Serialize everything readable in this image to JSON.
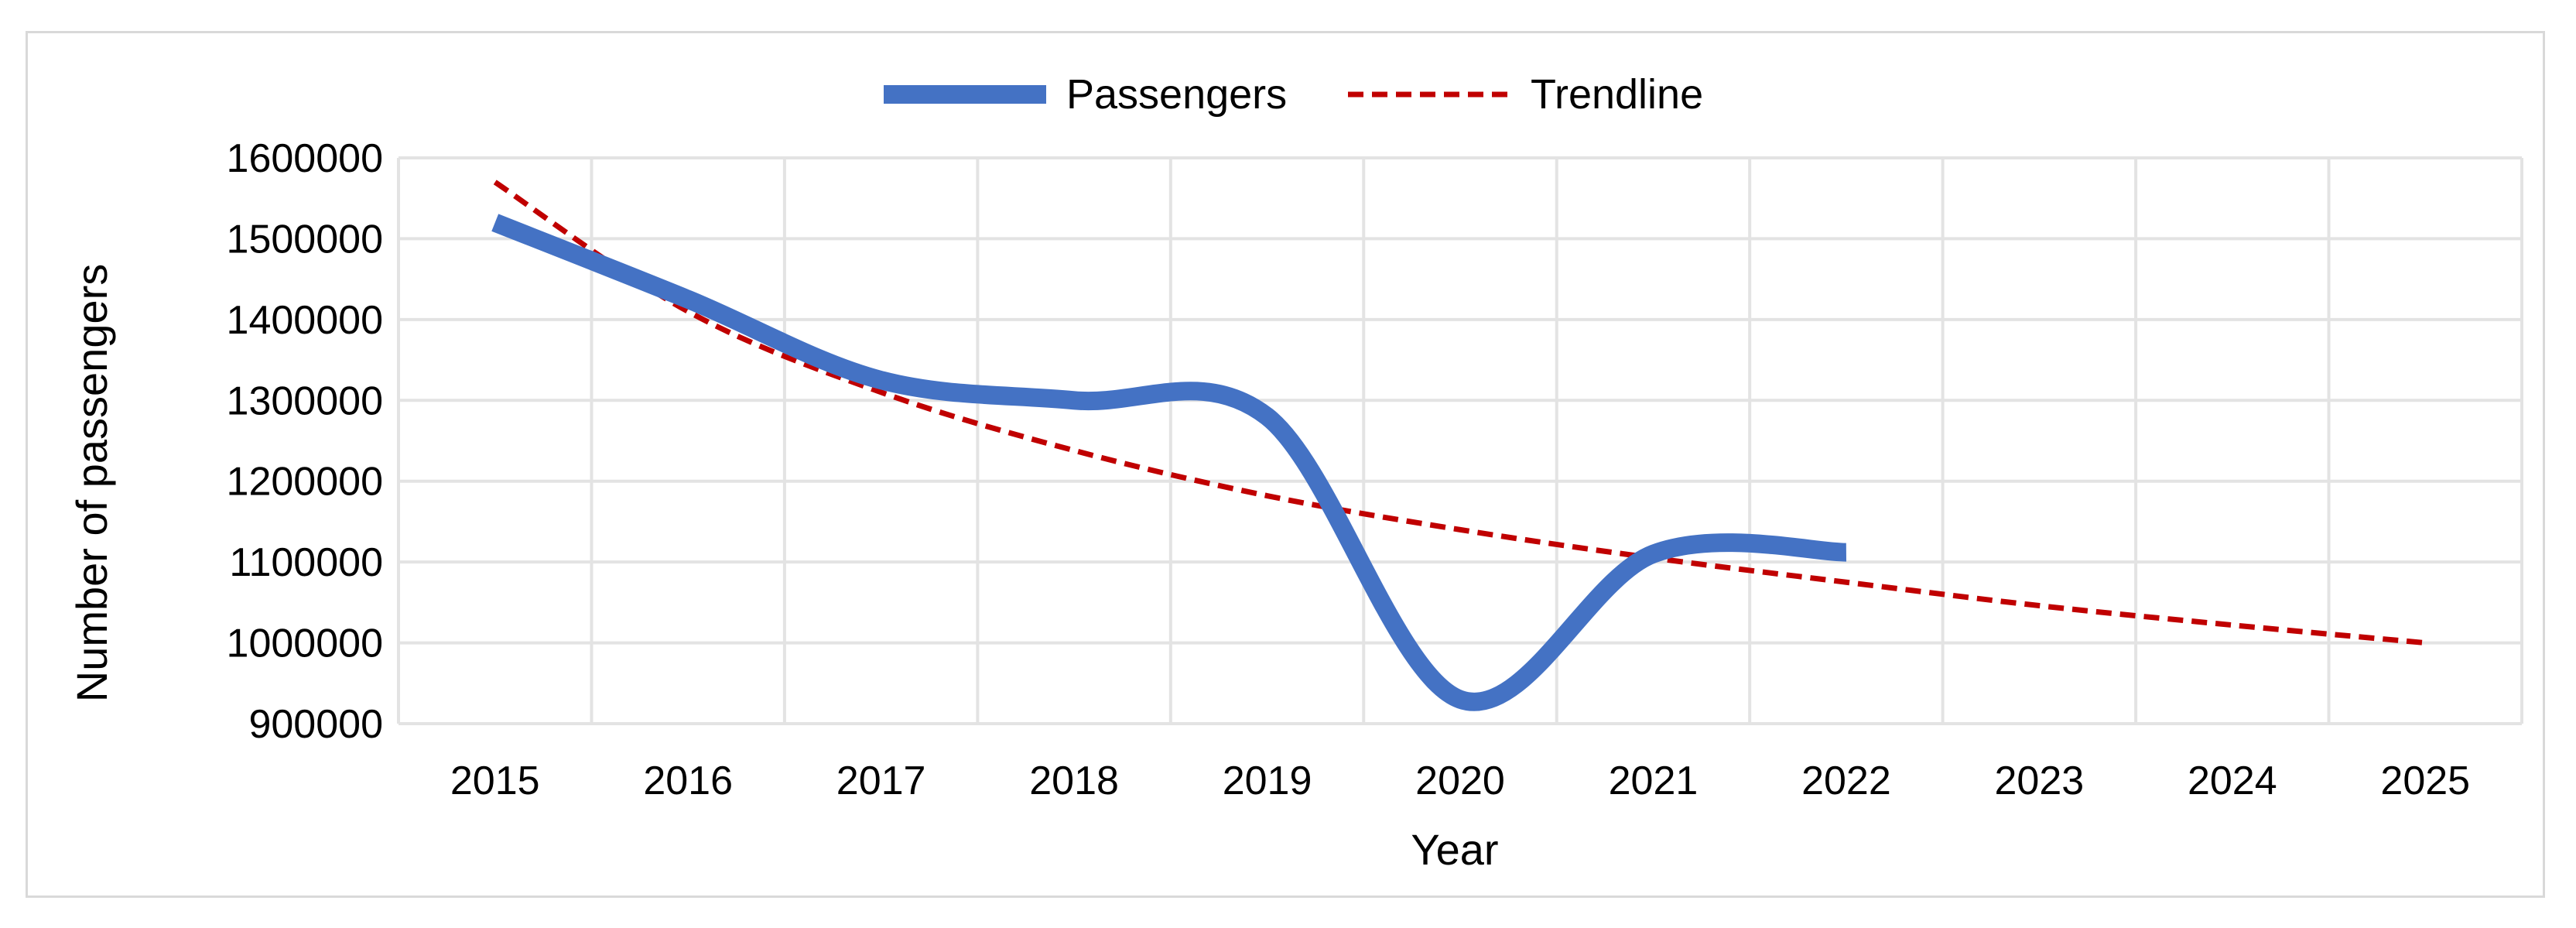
{
  "chart_data": {
    "type": "line",
    "title": "",
    "xlabel": "Year",
    "ylabel": "Number of passengers",
    "categories": [
      "2015",
      "2016",
      "2017",
      "2018",
      "2019",
      "2020",
      "2021",
      "2022",
      "2023",
      "2024",
      "2025"
    ],
    "ylim": [
      900000,
      1600000
    ],
    "yticks": [
      900000,
      1000000,
      1100000,
      1200000,
      1300000,
      1400000,
      1500000,
      1600000
    ],
    "grid": true,
    "legend_position": "top",
    "series": [
      {
        "name": "Passengers",
        "style": "solid-thick",
        "color": "#4472C4",
        "values": [
          1520000,
          1425000,
          1325000,
          1300000,
          1280000,
          930000,
          1110000,
          1112000,
          null,
          null,
          null
        ]
      },
      {
        "name": "Trendline",
        "style": "dashed",
        "color": "#C00000",
        "values": [
          1570000,
          1410000,
          1310000,
          1238000,
          1182000,
          1140000,
          1105000,
          1075000,
          1046000,
          1022000,
          1000000
        ]
      }
    ]
  }
}
